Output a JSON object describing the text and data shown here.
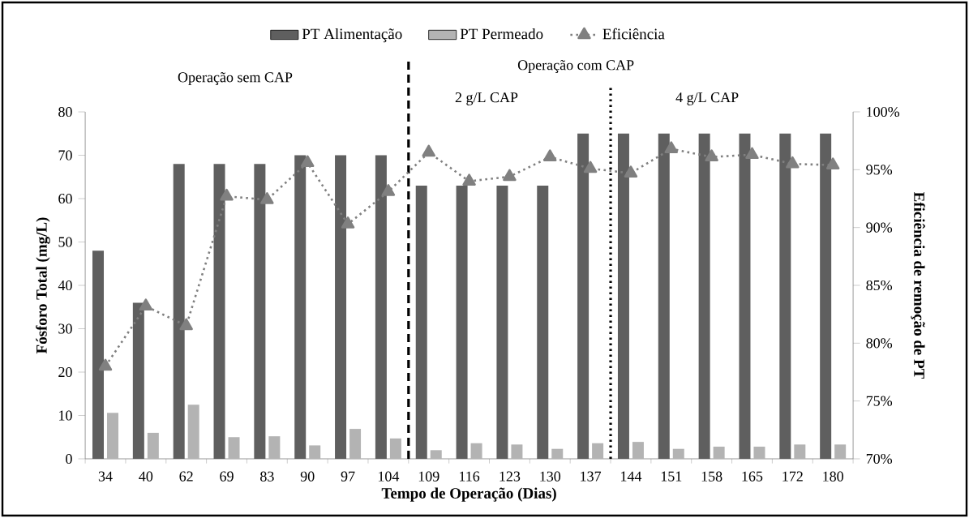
{
  "chart_data": {
    "type": "bar",
    "categories": [
      "34",
      "40",
      "62",
      "69",
      "83",
      "90",
      "97",
      "104",
      "109",
      "116",
      "123",
      "130",
      "137",
      "144",
      "151",
      "158",
      "165",
      "172",
      "180"
    ],
    "xlabel": "Tempo de Operação (Dias)",
    "ylabel": "Fósforo Total (mg/L)",
    "y2label": "Eficiência de remoção de PT",
    "ylim": [
      0,
      80
    ],
    "yticks": [
      0,
      10,
      20,
      30,
      40,
      50,
      60,
      70,
      80
    ],
    "y2lim": [
      70,
      100
    ],
    "y2ticks": [
      {
        "value": 70,
        "label": "70%"
      },
      {
        "value": 75,
        "label": "75%"
      },
      {
        "value": 80,
        "label": "80%"
      },
      {
        "value": 85,
        "label": "85%"
      },
      {
        "value": 90,
        "label": "90%"
      },
      {
        "value": 95,
        "label": "95%"
      },
      {
        "value": 100,
        "label": "100%"
      }
    ],
    "legend": "top",
    "grid": false,
    "series": [
      {
        "name": "PT Alimentação",
        "color": "#5f5f5f",
        "values": [
          48,
          36,
          68,
          68,
          68,
          70,
          70,
          70,
          63,
          63,
          63,
          63,
          75,
          75,
          75,
          75,
          75,
          75,
          75
        ]
      },
      {
        "name": "PT Permeado",
        "color": "#b3b3b3",
        "values": [
          10.6,
          6.0,
          12.5,
          5.0,
          5.2,
          3.1,
          6.9,
          4.7,
          2.0,
          3.6,
          3.3,
          2.3,
          3.6,
          3.9,
          2.3,
          2.8,
          2.8,
          3.3,
          3.3
        ]
      },
      {
        "name": "Eficiência",
        "type": "line",
        "axis": "y2",
        "color": "#808080",
        "marker": "triangle",
        "line_style": "dotted",
        "values": [
          78.0,
          83.2,
          81.5,
          92.7,
          92.4,
          95.6,
          90.3,
          93.1,
          96.5,
          94.0,
          94.4,
          96.1,
          95.1,
          94.7,
          96.8,
          96.1,
          96.3,
          95.5,
          95.4
        ]
      }
    ],
    "annotations": [
      "Operação sem CAP",
      "Operação com CAP",
      "2 g/L  CAP",
      "4 g/L  CAP"
    ]
  }
}
